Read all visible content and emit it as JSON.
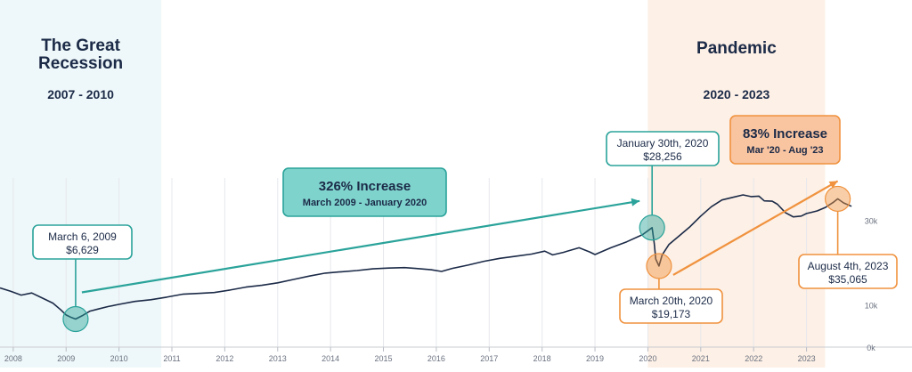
{
  "chart_data": {
    "type": "line",
    "title": "",
    "xlabel": "",
    "ylabel": "",
    "xlim": [
      2007.75,
      2023.95
    ],
    "ylim": [
      0,
      40000
    ],
    "y_ticks": [
      {
        "value": 0,
        "label": "0k"
      },
      {
        "value": 10000,
        "label": "10k"
      },
      {
        "value": 30000,
        "label": "30k"
      }
    ],
    "x_ticks": [
      "2008",
      "2009",
      "2010",
      "2011",
      "2012",
      "2013",
      "2014",
      "2015",
      "2016",
      "2017",
      "2018",
      "2019",
      "2020",
      "2021",
      "2022",
      "2023"
    ],
    "grid": "vertical",
    "series": [
      {
        "name": "",
        "color": "#1b2a47",
        "x": [
          2007.75,
          2007.95,
          2008.15,
          2008.35,
          2008.55,
          2008.75,
          2008.9,
          2009.0,
          2009.1,
          2009.18,
          2009.3,
          2009.45,
          2009.6,
          2009.8,
          2010.0,
          2010.3,
          2010.6,
          2010.9,
          2011.2,
          2011.5,
          2011.8,
          2012.1,
          2012.4,
          2012.7,
          2013.0,
          2013.3,
          2013.6,
          2013.9,
          2014.2,
          2014.5,
          2014.8,
          2015.1,
          2015.4,
          2015.6,
          2015.9,
          2016.1,
          2016.3,
          2016.6,
          2016.9,
          2017.2,
          2017.5,
          2017.8,
          2018.05,
          2018.2,
          2018.4,
          2018.7,
          2018.9,
          2019.0,
          2019.3,
          2019.6,
          2019.9,
          2020.08,
          2020.12,
          2020.15,
          2020.21,
          2020.27,
          2020.4,
          2020.6,
          2020.8,
          2021.0,
          2021.2,
          2021.4,
          2021.6,
          2021.8,
          2021.95,
          2022.1,
          2022.2,
          2022.35,
          2022.45,
          2022.6,
          2022.75,
          2022.9,
          2023.0,
          2023.1,
          2023.2,
          2023.35,
          2023.5,
          2023.59,
          2023.7,
          2023.85
        ],
        "y": [
          14000,
          13200,
          12300,
          12800,
          11600,
          10400,
          8800,
          7600,
          7000,
          6629,
          7400,
          8500,
          9000,
          9600,
          10100,
          10800,
          11200,
          11800,
          12500,
          12700,
          12900,
          13500,
          14200,
          14600,
          15200,
          16000,
          16800,
          17500,
          17800,
          18100,
          18500,
          18700,
          18800,
          18600,
          18300,
          17900,
          18600,
          19400,
          20300,
          21000,
          21500,
          22000,
          22700,
          21800,
          22400,
          23500,
          22500,
          21900,
          23500,
          24900,
          26600,
          28256,
          24500,
          20800,
          19173,
          21800,
          24300,
          26400,
          28500,
          31000,
          33200,
          34800,
          35400,
          36000,
          35600,
          35700,
          34600,
          34500,
          33800,
          31800,
          30800,
          31000,
          31600,
          31900,
          32200,
          33000,
          34200,
          35065,
          34100,
          33300
        ]
      }
    ],
    "bands": [
      {
        "label_lines": [
          "The Great",
          "Recession"
        ],
        "years": "2007 - 2010",
        "x_from": 2007.75,
        "x_to": 2010.8,
        "color": "#eef7f9"
      },
      {
        "label_lines": [
          "Pandemic"
        ],
        "years": "2020 - 2023",
        "x_from": 2020.0,
        "x_to": 2023.35,
        "color": "#fdf0e6"
      }
    ],
    "annotations": [
      {
        "name": "low-2009",
        "lines": [
          "March 6, 2009",
          "$6,629"
        ],
        "x": 2009.18,
        "y": 6629,
        "color": "#2aa39a"
      },
      {
        "name": "peak-jan-2020",
        "lines": [
          "January 30th, 2020",
          "$28,256"
        ],
        "x": 2020.08,
        "y": 28256,
        "color": "#2aa39a"
      },
      {
        "name": "low-mar-2020",
        "lines": [
          "March 20th, 2020",
          "$19,173"
        ],
        "x": 2020.21,
        "y": 19173,
        "color": "#f0923e"
      },
      {
        "name": "high-aug-2023",
        "lines": [
          "August 4th, 2023",
          "$35,065"
        ],
        "x": 2023.59,
        "y": 35065,
        "color": "#f0923e"
      }
    ],
    "callouts": [
      {
        "name": "increase-326",
        "headline": "326% Increase",
        "sub": "March 2009 - January 2020",
        "fill": "#7fd3cd",
        "stroke": "#2aa39a",
        "text_color": "#1b2a47"
      },
      {
        "name": "increase-83",
        "headline": "83% Increase",
        "sub": "Mar '20 - Aug '23",
        "fill": "#f9c4a0",
        "stroke": "#f0923e",
        "text_color": "#1b2a47"
      }
    ]
  }
}
